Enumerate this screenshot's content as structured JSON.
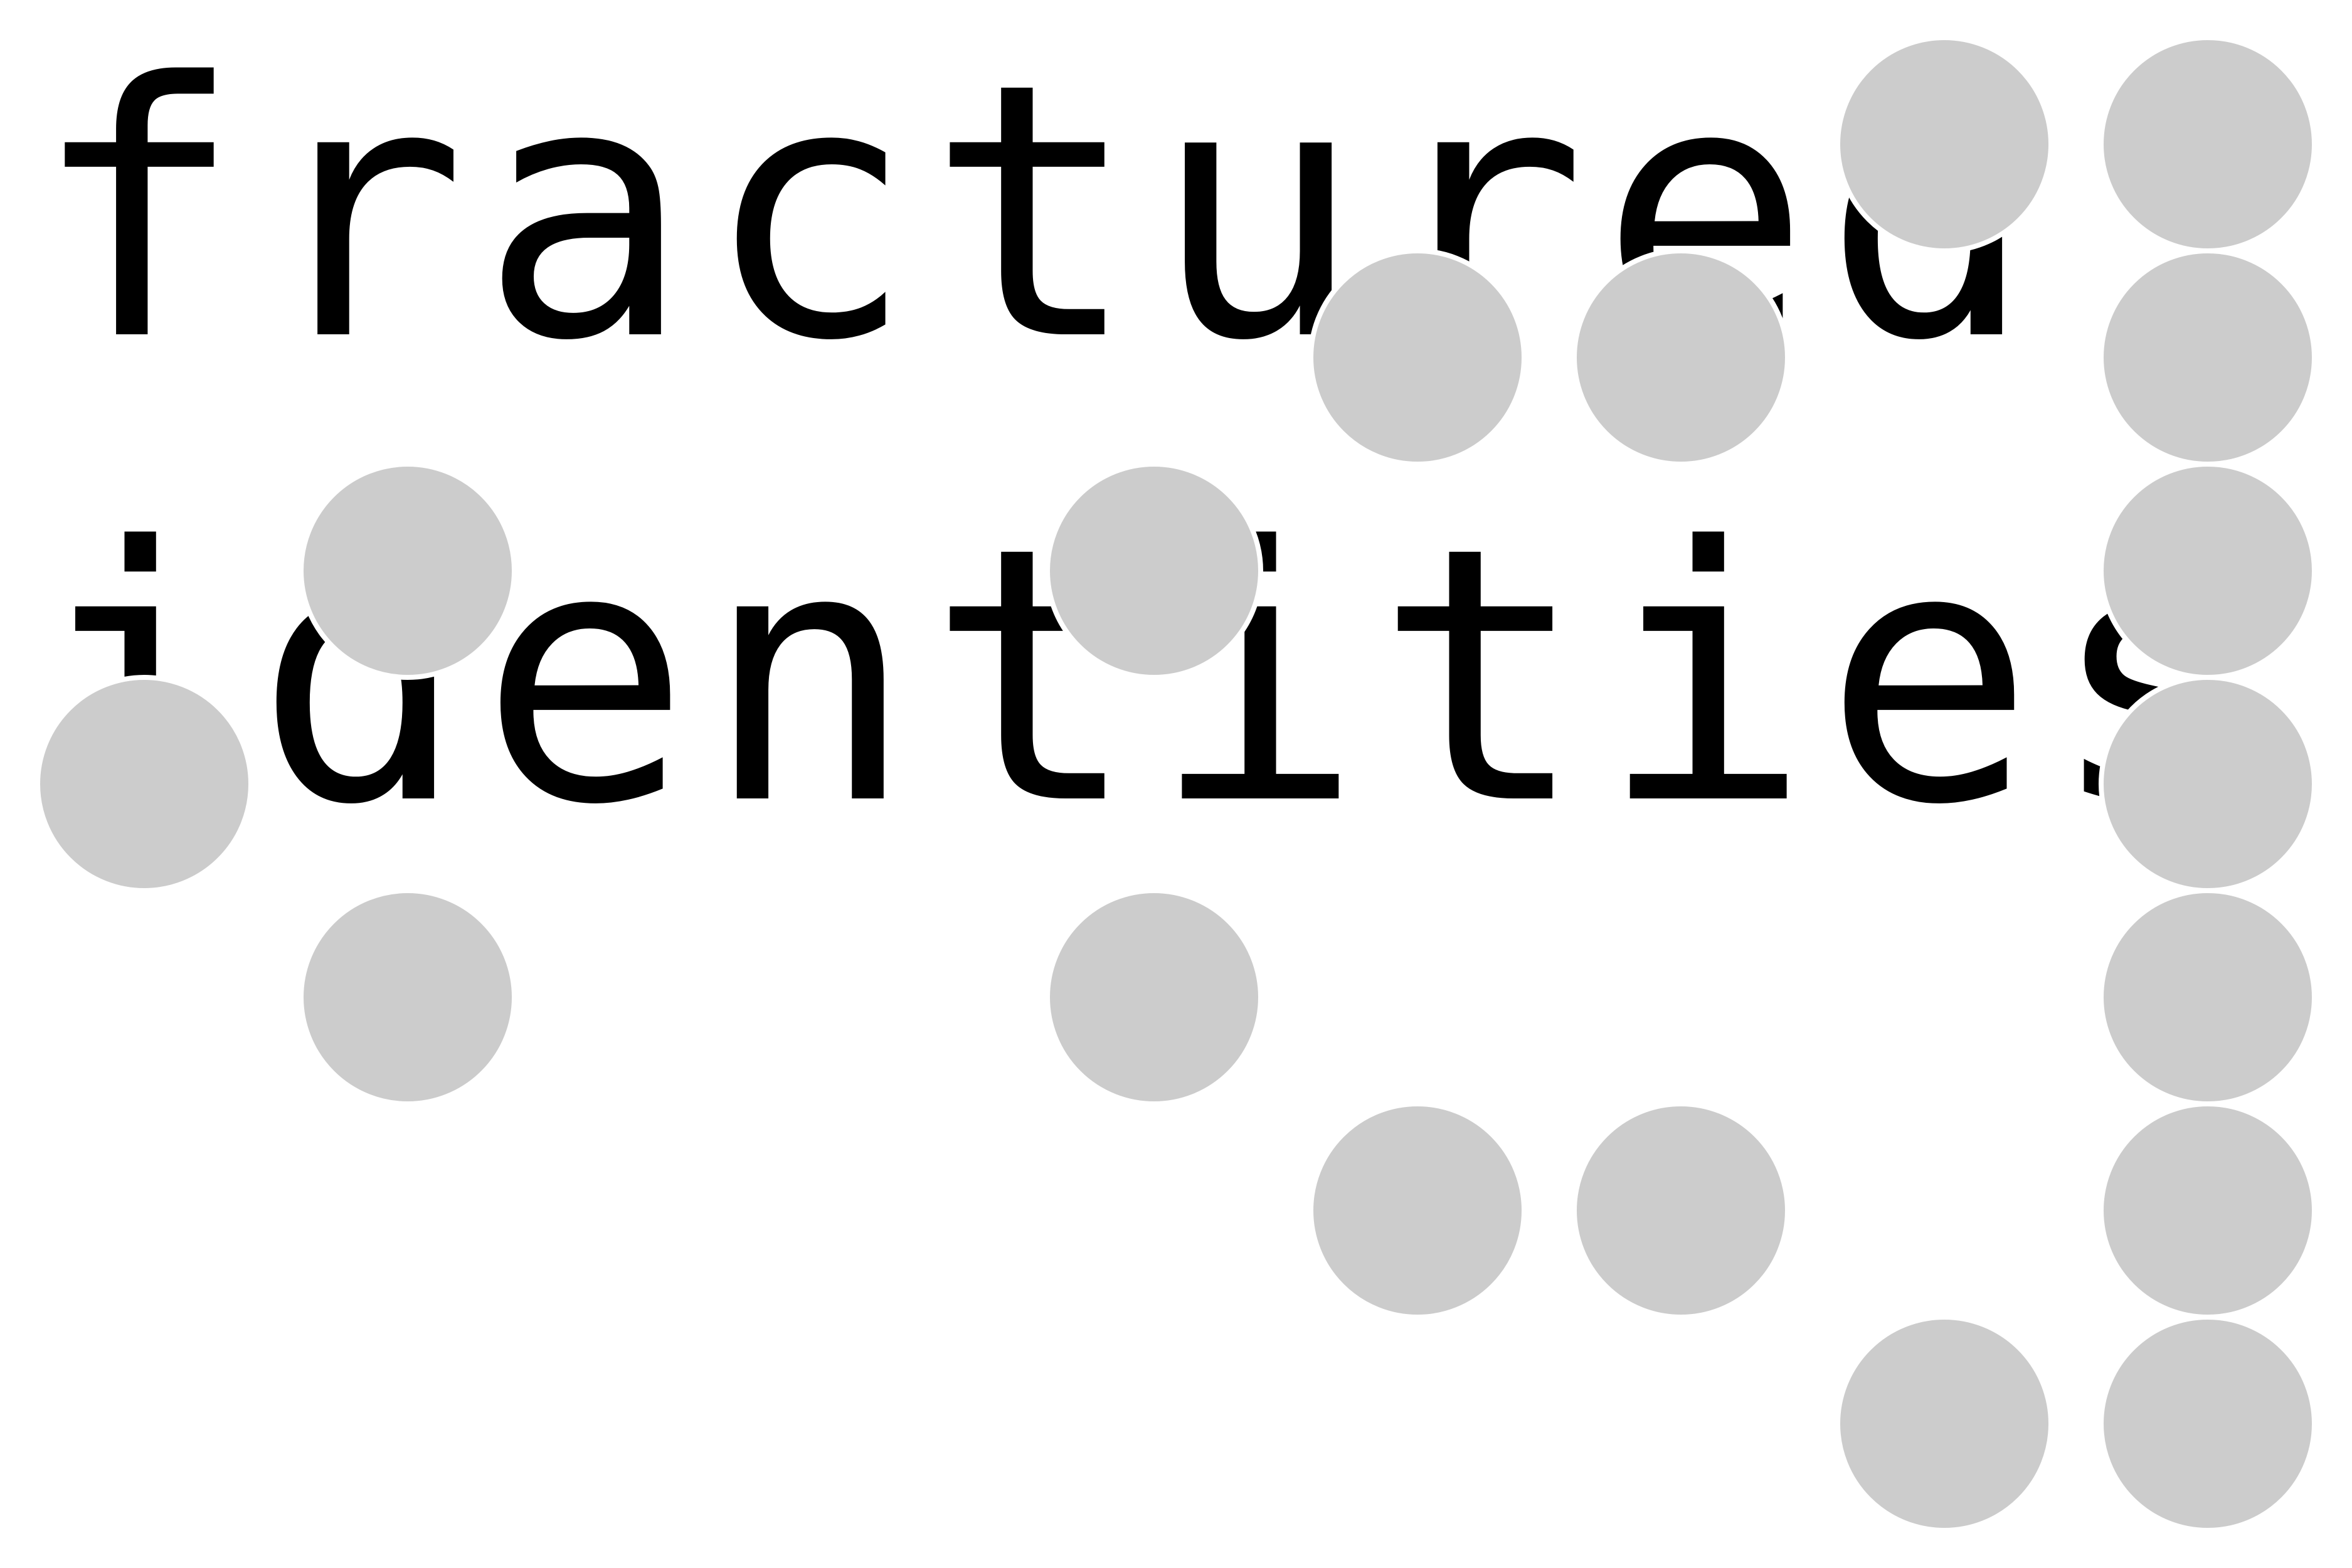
{
  "poster": {
    "lines": [
      "fractured",
      "identities"
    ]
  },
  "colors": {
    "background": "#ffffff",
    "text": "#000000",
    "dot": "#cccccc",
    "dot_outline": "#ffffff"
  },
  "dots": {
    "count": 22
  }
}
